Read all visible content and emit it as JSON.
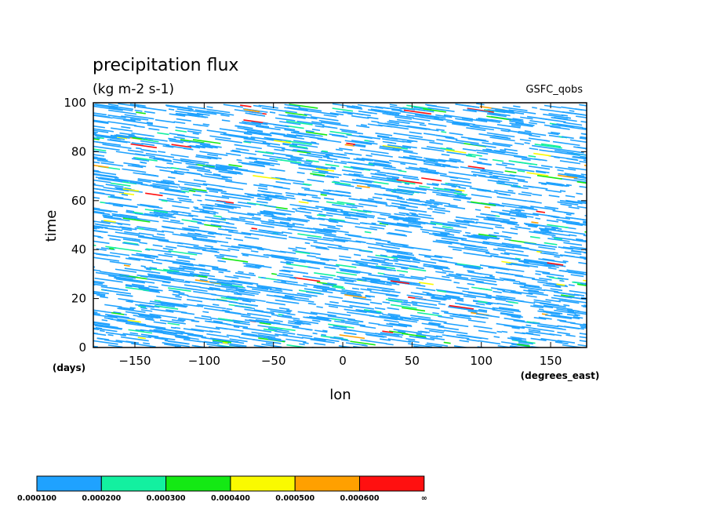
{
  "chart_data": {
    "type": "heatmap",
    "title": "precipitation flux",
    "subtitle": "(kg m-2 s-1)",
    "dataset_label": "GSFC_qobs",
    "xlabel": "lon",
    "xunits": "(degrees_east)",
    "ylabel": "time",
    "yunits": "(days)",
    "xlim": [
      -180,
      176
    ],
    "ylim": [
      0,
      100
    ],
    "x_ticks": [
      -150,
      -100,
      -50,
      0,
      50,
      100,
      150
    ],
    "x_tick_labels": [
      "−150",
      "−100",
      "−50",
      "0",
      "50",
      "100",
      "150"
    ],
    "y_ticks": [
      0,
      20,
      40,
      60,
      80,
      100
    ],
    "y_tick_labels": [
      "0",
      "20",
      "40",
      "60",
      "80",
      "100"
    ],
    "grid": false,
    "colorbar": {
      "placement": "bottom-left",
      "levels": [
        "0.000100",
        "0.000200",
        "0.000300",
        "0.000400",
        "0.000500",
        "0.000600",
        "∞"
      ],
      "colors": [
        "#1fa2ff",
        "#13f0a0",
        "#14e914",
        "#fafa00",
        "#ffa000",
        "#ff1010"
      ]
    }
  }
}
